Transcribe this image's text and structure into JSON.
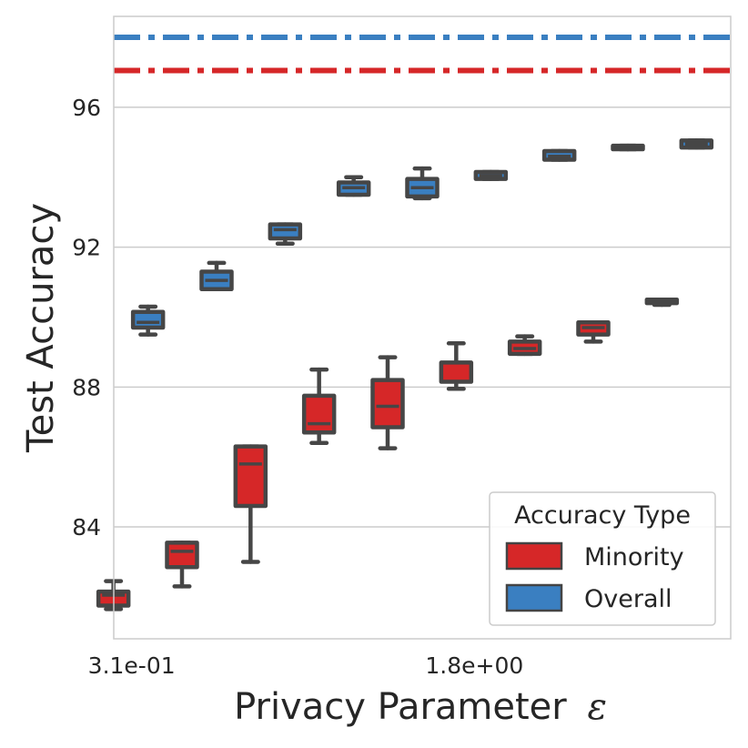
{
  "chart_data": {
    "type": "box",
    "xlabel": "Privacy Parameter",
    "xlabel_symbol": "ε",
    "ylabel": "Test Accuracy",
    "ylim": [
      80.8,
      98.6
    ],
    "yticks": [
      84,
      88,
      92,
      96
    ],
    "y_tick_labels": [
      "84",
      "88",
      "92",
      "96"
    ],
    "x_tick_labels": [
      {
        "label": "3.1e-01",
        "index": 0
      },
      {
        "label": "1.8e+00",
        "index": 5
      }
    ],
    "n_categories": 9,
    "grid": true,
    "reference_lines": [
      {
        "series": "Overall",
        "value": 98.0,
        "style": "dash-dot"
      },
      {
        "series": "Minority",
        "value": 97.05,
        "style": "dash-dot"
      }
    ],
    "series": [
      {
        "name": "Minority",
        "color": "#d62728",
        "boxes": [
          {
            "min": 81.65,
            "q1": 81.75,
            "median": 82.05,
            "q3": 82.15,
            "max": 82.45
          },
          {
            "min": 82.3,
            "q1": 82.85,
            "median": 83.3,
            "q3": 83.55,
            "max": 83.55
          },
          {
            "min": 83.0,
            "q1": 84.6,
            "median": 85.8,
            "q3": 86.3,
            "max": 86.3
          },
          {
            "min": 86.4,
            "q1": 86.7,
            "median": 86.95,
            "q3": 87.75,
            "max": 88.5
          },
          {
            "min": 86.25,
            "q1": 86.85,
            "median": 87.45,
            "q3": 88.2,
            "max": 88.85
          },
          {
            "min": 87.95,
            "q1": 88.15,
            "median": 88.15,
            "q3": 88.7,
            "max": 89.25
          },
          {
            "min": 88.95,
            "q1": 88.95,
            "median": 89.1,
            "q3": 89.3,
            "max": 89.45
          },
          {
            "min": 89.3,
            "q1": 89.5,
            "median": 89.7,
            "q3": 89.85,
            "max": 89.85
          },
          {
            "min": 90.35,
            "q1": 90.4,
            "median": 90.45,
            "q3": 90.5,
            "max": 90.5
          }
        ]
      },
      {
        "name": "Overall",
        "color": "#3a7fc1",
        "boxes": [
          {
            "min": 89.5,
            "q1": 89.7,
            "median": 89.85,
            "q3": 90.15,
            "max": 90.3
          },
          {
            "min": 90.8,
            "q1": 90.8,
            "median": 91.05,
            "q3": 91.3,
            "max": 91.55
          },
          {
            "min": 92.1,
            "q1": 92.25,
            "median": 92.5,
            "q3": 92.65,
            "max": 92.65
          },
          {
            "min": 93.5,
            "q1": 93.5,
            "median": 93.7,
            "q3": 93.85,
            "max": 94.0
          },
          {
            "min": 93.4,
            "q1": 93.45,
            "median": 93.7,
            "q3": 93.95,
            "max": 94.25
          },
          {
            "min": 93.95,
            "q1": 93.95,
            "median": 94.05,
            "q3": 94.15,
            "max": 94.15
          },
          {
            "min": 94.5,
            "q1": 94.5,
            "median": 94.6,
            "q3": 94.75,
            "max": 94.75
          },
          {
            "min": 94.8,
            "q1": 94.8,
            "median": 94.85,
            "q3": 94.9,
            "max": 94.9
          },
          {
            "min": 94.85,
            "q1": 94.85,
            "median": 94.95,
            "q3": 95.05,
            "max": 95.05
          }
        ]
      }
    ],
    "legend": {
      "title": "Accuracy Type",
      "position": "bottom-right",
      "entries": [
        {
          "label": "Minority",
          "color": "#d62728"
        },
        {
          "label": "Overall",
          "color": "#3a7fc1"
        }
      ]
    }
  }
}
